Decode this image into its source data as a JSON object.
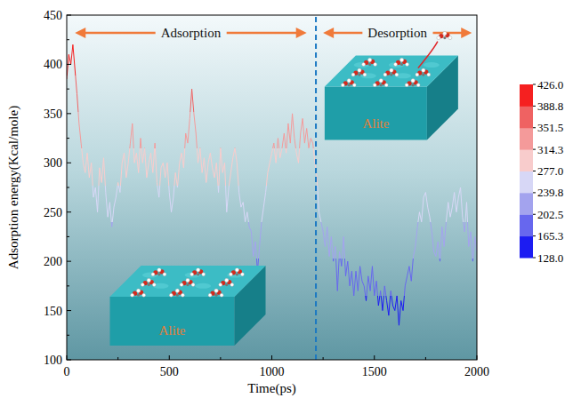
{
  "chart_data": {
    "type": "line",
    "x_label": "Time(ps)",
    "y_label": "Adsorption energy(Kcal/mole)",
    "x": [
      0,
      10,
      20,
      30,
      40,
      50,
      60,
      70,
      80,
      90,
      100,
      110,
      120,
      130,
      140,
      150,
      160,
      170,
      180,
      190,
      200,
      210,
      220,
      230,
      240,
      250,
      260,
      270,
      280,
      290,
      300,
      310,
      320,
      330,
      340,
      350,
      360,
      370,
      380,
      390,
      400,
      410,
      420,
      430,
      440,
      450,
      460,
      470,
      480,
      490,
      500,
      510,
      520,
      530,
      540,
      550,
      560,
      570,
      580,
      590,
      600,
      610,
      620,
      630,
      640,
      650,
      660,
      670,
      680,
      690,
      700,
      710,
      720,
      730,
      740,
      750,
      760,
      770,
      780,
      790,
      800,
      810,
      820,
      830,
      840,
      850,
      860,
      870,
      880,
      890,
      900,
      910,
      920,
      930,
      940,
      950,
      960,
      970,
      980,
      990,
      1000,
      1010,
      1020,
      1030,
      1040,
      1050,
      1060,
      1070,
      1080,
      1090,
      1100,
      1110,
      1120,
      1130,
      1140,
      1150,
      1160,
      1170,
      1180,
      1190,
      1200,
      1210,
      1220,
      1230,
      1240,
      1250,
      1260,
      1270,
      1280,
      1290,
      1300,
      1310,
      1320,
      1330,
      1340,
      1350,
      1360,
      1370,
      1380,
      1390,
      1400,
      1410,
      1420,
      1430,
      1440,
      1450,
      1460,
      1470,
      1480,
      1490,
      1500,
      1510,
      1520,
      1530,
      1540,
      1550,
      1560,
      1570,
      1580,
      1590,
      1600,
      1610,
      1620,
      1630,
      1640,
      1650,
      1660,
      1670,
      1680,
      1690,
      1700,
      1710,
      1720,
      1730,
      1740,
      1750,
      1760,
      1770,
      1780,
      1790,
      1800,
      1810,
      1820,
      1830,
      1840,
      1850,
      1860,
      1870,
      1880,
      1890,
      1900,
      1910,
      1920,
      1930,
      1940,
      1950,
      1960,
      1970,
      1980,
      1990,
      2000
    ],
    "series": [
      {
        "values": [
          385,
          410,
          400,
          420,
          395,
          370,
          340,
          320,
          300,
          290,
          310,
          285,
          300,
          265,
          275,
          250,
          295,
          280,
          305,
          270,
          245,
          260,
          235,
          255,
          265,
          280,
          270,
          300,
          310,
          285,
          300,
          320,
          340,
          300,
          310,
          290,
          325,
          300,
          315,
          285,
          300,
          310,
          290,
          320,
          280,
          265,
          295,
          300,
          285,
          300,
          270,
          250,
          265,
          290,
          275,
          300,
          310,
          295,
          330,
          320,
          345,
          375,
          350,
          330,
          300,
          315,
          290,
          305,
          280,
          300,
          310,
          295,
          285,
          300,
          270,
          315,
          290,
          300,
          250,
          275,
          290,
          305,
          315,
          300,
          270,
          255,
          260,
          240,
          250,
          235,
          230,
          205,
          220,
          190,
          215,
          240,
          255,
          270,
          290,
          300,
          310,
          320,
          300,
          325,
          305,
          315,
          330,
          310,
          340,
          320,
          350,
          325,
          310,
          300,
          330,
          345,
          320,
          335,
          315,
          325,
          320,
          300,
          285,
          250,
          240,
          230,
          215,
          235,
          205,
          225,
          200,
          215,
          170,
          210,
          195,
          225,
          185,
          200,
          175,
          190,
          165,
          190,
          170,
          195,
          180,
          175,
          160,
          185,
          170,
          195,
          165,
          180,
          155,
          170,
          150,
          175,
          160,
          145,
          170,
          155,
          150,
          165,
          135,
          160,
          150,
          175,
          185,
          195,
          180,
          205,
          215,
          235,
          250,
          240,
          265,
          270,
          255,
          245,
          230,
          210,
          205,
          220,
          200,
          235,
          215,
          240,
          260,
          245,
          255,
          270,
          250,
          265,
          275,
          245,
          230,
          260,
          215,
          230,
          200,
          225,
          210
        ]
      }
    ],
    "xlim": [
      0,
      2000
    ],
    "xticks": [
      0,
      500,
      1000,
      1500,
      2000
    ],
    "ylim": [
      100,
      450
    ],
    "yticks": [
      100,
      150,
      200,
      250,
      300,
      350,
      400,
      450
    ],
    "colorbar": {
      "range": [
        128,
        426
      ],
      "ticks": [
        {
          "value": 426,
          "label": "426.0"
        },
        {
          "value": 388.75,
          "label": "388.8"
        },
        {
          "value": 351.5,
          "label": "351.5"
        },
        {
          "value": 314.25,
          "label": "314.3"
        },
        {
          "value": 277,
          "label": "277.0"
        },
        {
          "value": 239.75,
          "label": "239.8"
        },
        {
          "value": 202.5,
          "label": "202.5"
        },
        {
          "value": 165.25,
          "label": "165.3"
        },
        {
          "value": 128,
          "label": "128.0"
        }
      ],
      "colors": [
        "#1c1cf2",
        "#6767ee",
        "#a3a3ee",
        "#d7d7f6",
        "#f8cccc",
        "#f49a9a",
        "#ef6262",
        "#f52020"
      ]
    },
    "annotations": [
      {
        "type": "arrow",
        "text": "Adsorption",
        "x": [
          40,
          1170
        ],
        "y": 432
      },
      {
        "type": "arrow",
        "text": "Desorption",
        "x": [
          1250,
          1975
        ],
        "y": 432
      },
      {
        "type": "vline",
        "x": 1215,
        "line_style": "dashed"
      },
      {
        "type": "inset",
        "text": "Alite",
        "x": 590,
        "y": 155
      },
      {
        "type": "inset",
        "text": "Alite",
        "x": 1583,
        "y": 366
      }
    ]
  }
}
